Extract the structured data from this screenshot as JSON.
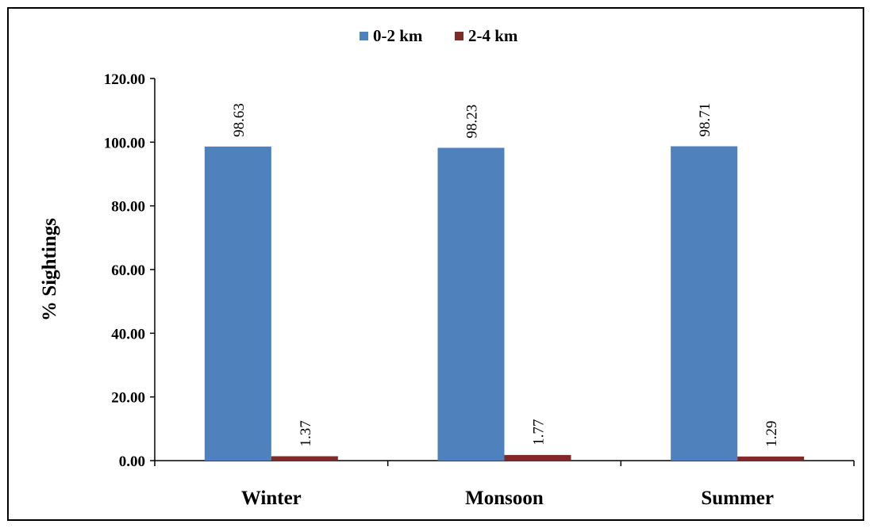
{
  "chart_data": {
    "type": "bar",
    "categories": [
      "Winter",
      "Monsoon",
      "Summer"
    ],
    "series": [
      {
        "name": "0-2 km",
        "values": [
          98.63,
          98.23,
          98.71
        ],
        "value_labels": [
          "98.63",
          "98.23",
          "98.71"
        ],
        "color": "#4f81bd"
      },
      {
        "name": "2-4 km",
        "values": [
          1.37,
          1.77,
          1.29
        ],
        "value_labels": [
          "1.37",
          "1.77",
          "1.29"
        ],
        "color": "#7b2c26"
      }
    ],
    "ylabel": "% Sightings",
    "ylim": [
      0,
      120
    ],
    "yticks": [
      "0.00",
      "20.00",
      "40.00",
      "60.00",
      "80.00",
      "100.00",
      "120.00"
    ],
    "legend_position": "top-center",
    "grid": false
  }
}
